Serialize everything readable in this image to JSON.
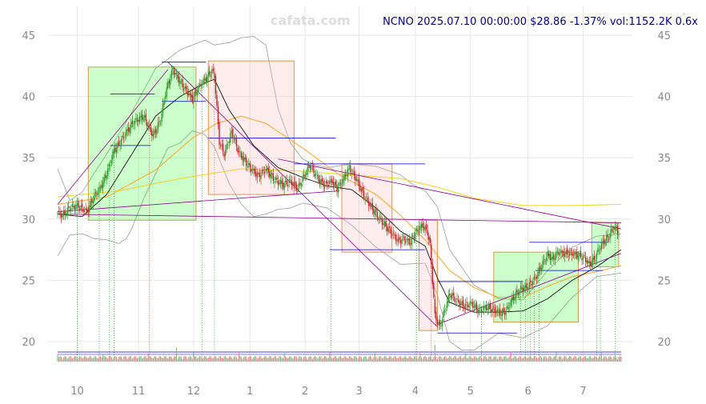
{
  "chart_data": {
    "type": "candlestick",
    "title": "NCNO 2025.07.10 00:00:00 $28.86 -1.37% vol:1152.2K 0.6x",
    "watermark": "cafata.com",
    "x_ticks": [
      "10",
      "11",
      "12",
      "1",
      "2",
      "3",
      "4",
      "5",
      "6",
      "7"
    ],
    "y_ticks": [
      20,
      25,
      30,
      35,
      40,
      45
    ],
    "ylim": [
      18.0,
      46.5
    ],
    "grid": true,
    "colors": {
      "up": "#2ca02c",
      "down": "#c0282e",
      "accent": "#00008b"
    },
    "price_path": [
      [
        0,
        30.5
      ],
      [
        4,
        30.3
      ],
      [
        10,
        30.9
      ],
      [
        16,
        31.1
      ],
      [
        24,
        30.6
      ],
      [
        30,
        31.9
      ],
      [
        34,
        32.4
      ],
      [
        38,
        33.2
      ],
      [
        42,
        34.3
      ],
      [
        46,
        35.6
      ],
      [
        50,
        36.1
      ],
      [
        56,
        37.1
      ],
      [
        62,
        37.9
      ],
      [
        70,
        38.4
      ],
      [
        74,
        37.6
      ],
      [
        78,
        36.8
      ],
      [
        84,
        38.1
      ],
      [
        88,
        40.3
      ],
      [
        94,
        42.2
      ],
      [
        98,
        41.5
      ],
      [
        104,
        40.6
      ],
      [
        110,
        39.8
      ],
      [
        116,
        40.9
      ],
      [
        122,
        41.6
      ],
      [
        126,
        42.1
      ],
      [
        128,
        41.7
      ],
      [
        132,
        36.3
      ],
      [
        136,
        35.3
      ],
      [
        142,
        37.1
      ],
      [
        148,
        35.4
      ],
      [
        156,
        34.3
      ],
      [
        164,
        33.5
      ],
      [
        170,
        34.1
      ],
      [
        176,
        33.3
      ],
      [
        184,
        32.8
      ],
      [
        190,
        33.1
      ],
      [
        196,
        32.5
      ],
      [
        200,
        33.3
      ],
      [
        206,
        34.4
      ],
      [
        210,
        33.7
      ],
      [
        214,
        33.1
      ],
      [
        218,
        32.8
      ],
      [
        224,
        33.1
      ],
      [
        228,
        32.5
      ],
      [
        232,
        33.0
      ],
      [
        238,
        34.2
      ],
      [
        244,
        33.2
      ],
      [
        250,
        31.9
      ],
      [
        256,
        31.0
      ],
      [
        262,
        30.1
      ],
      [
        268,
        29.4
      ],
      [
        274,
        28.7
      ],
      [
        278,
        28.2
      ],
      [
        282,
        28.4
      ],
      [
        288,
        28.1
      ],
      [
        292,
        28.9
      ],
      [
        298,
        29.5
      ],
      [
        302,
        28.9
      ],
      [
        304,
        27.8
      ],
      [
        308,
        22.1
      ],
      [
        312,
        21.2
      ],
      [
        316,
        22.6
      ],
      [
        320,
        23.9
      ],
      [
        326,
        23.3
      ],
      [
        332,
        22.9
      ],
      [
        338,
        23.1
      ],
      [
        344,
        22.5
      ],
      [
        350,
        22.8
      ],
      [
        356,
        22.6
      ],
      [
        362,
        22.3
      ],
      [
        366,
        22.5
      ],
      [
        372,
        23.6
      ],
      [
        378,
        24.3
      ],
      [
        384,
        24.5
      ],
      [
        390,
        25.2
      ],
      [
        396,
        26.4
      ],
      [
        400,
        27.1
      ],
      [
        404,
        26.7
      ],
      [
        408,
        27.3
      ],
      [
        414,
        27.2
      ],
      [
        420,
        27.2
      ],
      [
        426,
        27.0
      ],
      [
        430,
        26.8
      ],
      [
        434,
        26.3
      ],
      [
        438,
        26.7
      ],
      [
        442,
        27.6
      ],
      [
        446,
        28.2
      ],
      [
        450,
        28.6
      ],
      [
        454,
        29.4
      ],
      [
        458,
        28.86
      ]
    ],
    "ma_slow": [
      [
        0,
        31.8
      ],
      [
        50,
        32.3
      ],
      [
        100,
        33.3
      ],
      [
        150,
        34.1
      ],
      [
        200,
        33.9
      ],
      [
        240,
        33.6
      ],
      [
        280,
        33.3
      ],
      [
        310,
        32.6
      ],
      [
        340,
        31.7
      ],
      [
        380,
        31.1
      ],
      [
        420,
        31.1
      ],
      [
        460,
        31.2
      ]
    ],
    "ma_mid": [
      [
        0,
        31.2
      ],
      [
        40,
        31.8
      ],
      [
        80,
        34.0
      ],
      [
        110,
        36.6
      ],
      [
        130,
        37.8
      ],
      [
        150,
        38.4
      ],
      [
        170,
        37.8
      ],
      [
        200,
        35.8
      ],
      [
        230,
        33.6
      ],
      [
        260,
        32.0
      ],
      [
        280,
        30.3
      ],
      [
        300,
        28.3
      ],
      [
        320,
        25.8
      ],
      [
        340,
        24.4
      ],
      [
        360,
        23.6
      ],
      [
        380,
        23.6
      ],
      [
        400,
        24.5
      ],
      [
        420,
        25.3
      ],
      [
        440,
        25.7
      ],
      [
        460,
        26.2
      ]
    ],
    "ma_fast": [
      [
        0,
        30.4
      ],
      [
        20,
        30.2
      ],
      [
        40,
        32.0
      ],
      [
        60,
        35.2
      ],
      [
        80,
        38.4
      ],
      [
        100,
        40.0
      ],
      [
        120,
        41.1
      ],
      [
        128,
        41.4
      ],
      [
        140,
        38.9
      ],
      [
        160,
        36.0
      ],
      [
        180,
        34.2
      ],
      [
        200,
        33.4
      ],
      [
        220,
        32.7
      ],
      [
        240,
        32.4
      ],
      [
        260,
        30.9
      ],
      [
        280,
        29.0
      ],
      [
        300,
        27.8
      ],
      [
        310,
        25.2
      ],
      [
        320,
        23.2
      ],
      [
        340,
        22.4
      ],
      [
        360,
        22.4
      ],
      [
        380,
        22.5
      ],
      [
        400,
        23.5
      ],
      [
        420,
        25.0
      ],
      [
        440,
        26.1
      ],
      [
        460,
        27.5
      ]
    ],
    "band_upper": [
      [
        0,
        34.1
      ],
      [
        10,
        31.5
      ],
      [
        20,
        32.2
      ],
      [
        40,
        35.3
      ],
      [
        60,
        38.6
      ],
      [
        80,
        42.3
      ],
      [
        100,
        43.8
      ],
      [
        120,
        44.6
      ],
      [
        128,
        44.2
      ],
      [
        140,
        44.4
      ],
      [
        150,
        44.8
      ],
      [
        160,
        44.9
      ],
      [
        170,
        44.2
      ],
      [
        180,
        39.0
      ],
      [
        190,
        36.2
      ],
      [
        200,
        34.9
      ],
      [
        210,
        34.4
      ],
      [
        220,
        34.2
      ],
      [
        240,
        34.5
      ],
      [
        260,
        34.3
      ],
      [
        280,
        33.6
      ],
      [
        290,
        32.8
      ],
      [
        300,
        32.3
      ],
      [
        310,
        31.0
      ],
      [
        320,
        27.5
      ],
      [
        340,
        24.6
      ],
      [
        360,
        23.5
      ],
      [
        380,
        23.4
      ],
      [
        400,
        25.8
      ],
      [
        420,
        27.7
      ],
      [
        440,
        28.6
      ],
      [
        460,
        28.8
      ]
    ],
    "band_lower": [
      [
        0,
        27.0
      ],
      [
        10,
        28.7
      ],
      [
        20,
        28.8
      ],
      [
        30,
        28.4
      ],
      [
        40,
        28.3
      ],
      [
        50,
        28.0
      ],
      [
        56,
        28.4
      ],
      [
        60,
        29.1
      ],
      [
        70,
        31.6
      ],
      [
        80,
        33.7
      ],
      [
        90,
        35.8
      ],
      [
        100,
        36.2
      ],
      [
        110,
        37.2
      ],
      [
        120,
        36.9
      ],
      [
        128,
        35.9
      ],
      [
        140,
        32.9
      ],
      [
        150,
        31.2
      ],
      [
        160,
        30.2
      ],
      [
        170,
        30.4
      ],
      [
        180,
        30.8
      ],
      [
        190,
        30.9
      ],
      [
        200,
        31.3
      ],
      [
        220,
        30.9
      ],
      [
        240,
        29.5
      ],
      [
        260,
        27.7
      ],
      [
        280,
        26.3
      ],
      [
        300,
        26.4
      ],
      [
        310,
        23.8
      ],
      [
        320,
        20.0
      ],
      [
        330,
        19.3
      ],
      [
        340,
        19.3
      ],
      [
        360,
        20.7
      ],
      [
        380,
        20.3
      ],
      [
        400,
        21.3
      ],
      [
        420,
        23.6
      ],
      [
        440,
        25.3
      ],
      [
        460,
        25.6
      ]
    ],
    "boxes": [
      {
        "x0": 25,
        "x1": 113,
        "y0": 29.9,
        "y1": 42.4,
        "kind": "up"
      },
      {
        "x0": 123,
        "x1": 193,
        "y0": 32.0,
        "y1": 42.9,
        "kind": "down"
      },
      {
        "x0": 232,
        "x1": 273,
        "y0": 27.3,
        "y1": 34.5,
        "kind": "down"
      },
      {
        "x0": 295,
        "x1": 310,
        "y0": 20.9,
        "y1": 29.9,
        "kind": "down"
      },
      {
        "x0": 356,
        "x1": 425,
        "y0": 21.6,
        "y1": 27.3,
        "kind": "up"
      },
      {
        "x0": 436,
        "x1": 458,
        "y0": 26.1,
        "y1": 29.7,
        "kind": "up"
      }
    ],
    "level_lines": [
      [
        43,
        79,
        40.2
      ],
      [
        43,
        76,
        36.0
      ],
      [
        85,
        121,
        42.8
      ],
      [
        85,
        121,
        39.6
      ],
      [
        123,
        227,
        36.6
      ],
      [
        193,
        300,
        34.5
      ],
      [
        222,
        300,
        27.5
      ],
      [
        310,
        380,
        24.9
      ],
      [
        310,
        375,
        20.7
      ],
      [
        385,
        450,
        28.1
      ],
      [
        390,
        445,
        25.8
      ]
    ],
    "trend_lines": [
      [
        0,
        30.4,
        460,
        29.7
      ],
      [
        0,
        31.2,
        90,
        42.2
      ],
      [
        90,
        42.8,
        310,
        21.2
      ],
      [
        180,
        34.9,
        460,
        29.2
      ],
      [
        310,
        21.4,
        460,
        27.2
      ],
      [
        0,
        30.6,
        230,
        32.3
      ]
    ],
    "vlines": [
      16,
      34,
      42,
      46,
      75,
      118,
      128,
      223,
      293,
      305,
      346,
      378,
      382,
      386,
      389,
      393,
      440,
      443,
      455
    ]
  }
}
